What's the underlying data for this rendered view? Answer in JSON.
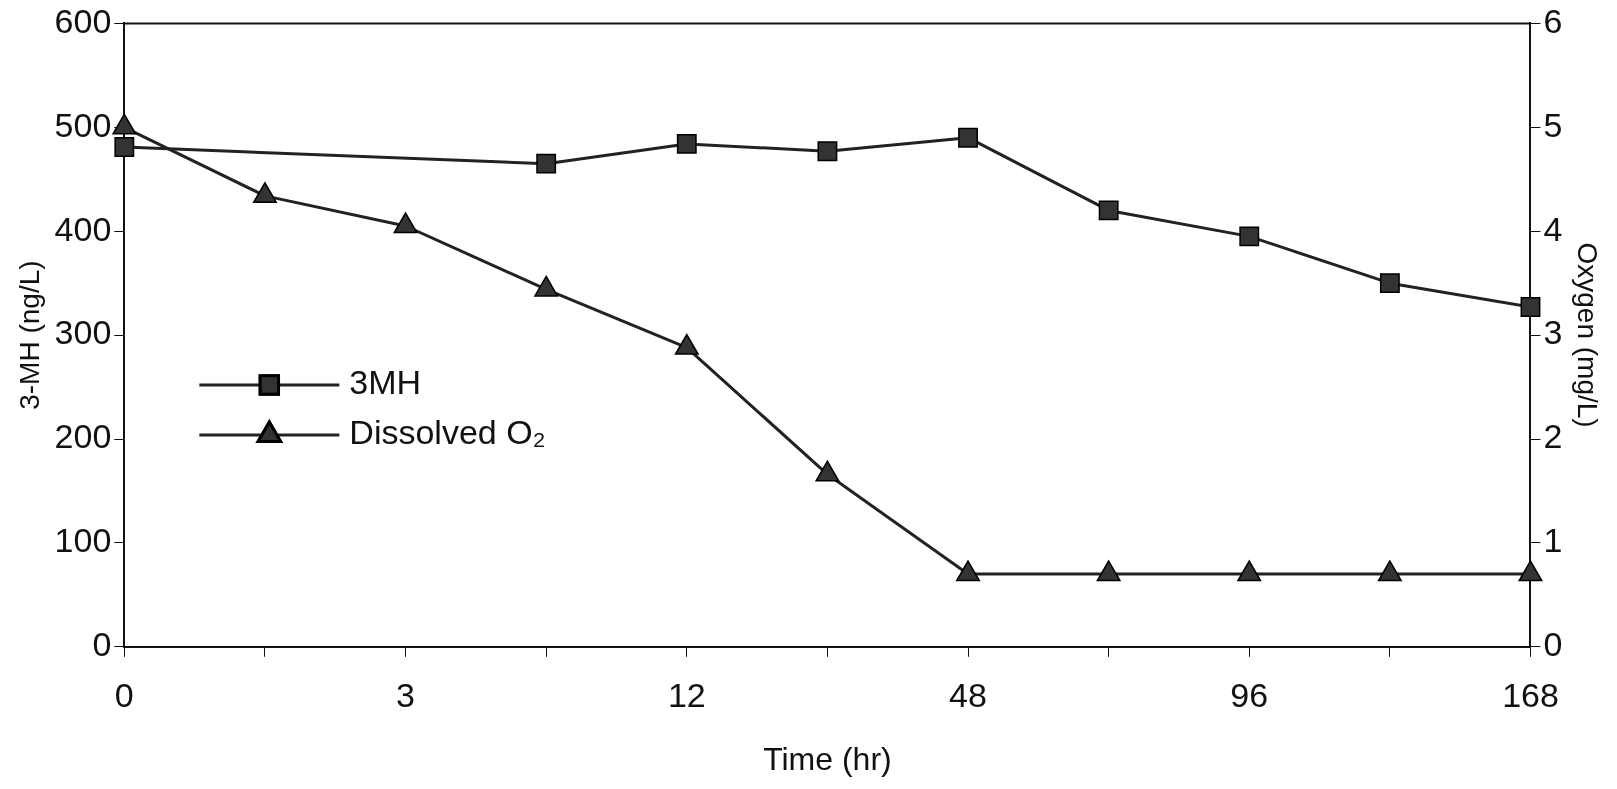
{
  "chart_data": {
    "type": "line",
    "xlabel": "Time (hr)",
    "ylabel": "3-MH (ng/L)",
    "y2label": "Oxygen (mg/L)",
    "categories": [
      "0",
      null,
      "3",
      null,
      "12",
      null,
      "48",
      null,
      "96",
      null,
      "168"
    ],
    "ylim": [
      0,
      600
    ],
    "yticks": [
      0,
      100,
      200,
      300,
      400,
      500,
      600
    ],
    "y2lim": [
      0,
      6
    ],
    "y2ticks": [
      0,
      1,
      2,
      3,
      4,
      5,
      6
    ],
    "series": [
      {
        "name": "3MH",
        "color": "#222222",
        "marker": "square",
        "values": [
          481,
          null,
          null,
          465,
          484,
          477,
          490,
          420,
          395,
          350,
          327
        ]
      },
      {
        "name": "Dissolved O₂",
        "color": "#222222",
        "marker": "triangle",
        "axis": "y2",
        "values": [
          5.0,
          4.34,
          4.05,
          3.44,
          2.88,
          1.66,
          0.7,
          0.7,
          0.7,
          0.7,
          0.7
        ]
      }
    ],
    "grid": false,
    "legend": "left"
  }
}
